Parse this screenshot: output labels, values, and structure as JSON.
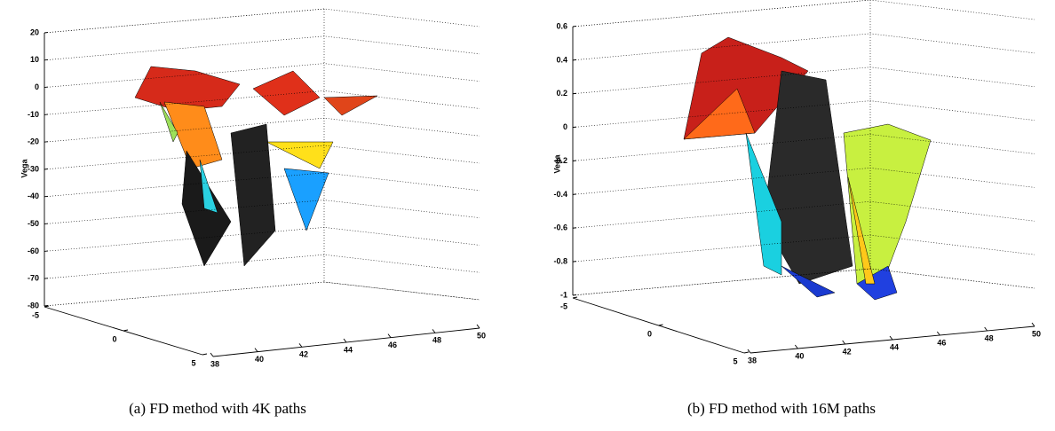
{
  "chart_data": [
    {
      "type": "surface3d",
      "zlabel": "Vega",
      "caption": "(a) FD method with 4K paths",
      "xlim": [
        -5,
        5
      ],
      "xticks": [
        -5,
        0,
        5
      ],
      "ylim": [
        38,
        50
      ],
      "yticks": [
        38,
        40,
        42,
        44,
        46,
        48,
        50
      ],
      "zlim": [
        -80,
        20
      ],
      "zticks": [
        20,
        10,
        0,
        -10,
        -20,
        -30,
        -40,
        -50,
        -60,
        -70,
        -80
      ],
      "grid": true
    },
    {
      "type": "surface3d",
      "zlabel": "Vega",
      "caption": "(b) FD method with 16M paths",
      "xlim": [
        -5,
        5
      ],
      "xticks": [
        -5,
        0,
        5
      ],
      "ylim": [
        38,
        50
      ],
      "yticks": [
        38,
        40,
        42,
        44,
        46,
        48,
        50
      ],
      "zlim": [
        -1,
        0.6
      ],
      "zticks": [
        0.6,
        0.4,
        0.2,
        0,
        -0.2,
        -0.4,
        -0.6,
        -0.8,
        -1
      ],
      "grid": true
    }
  ]
}
